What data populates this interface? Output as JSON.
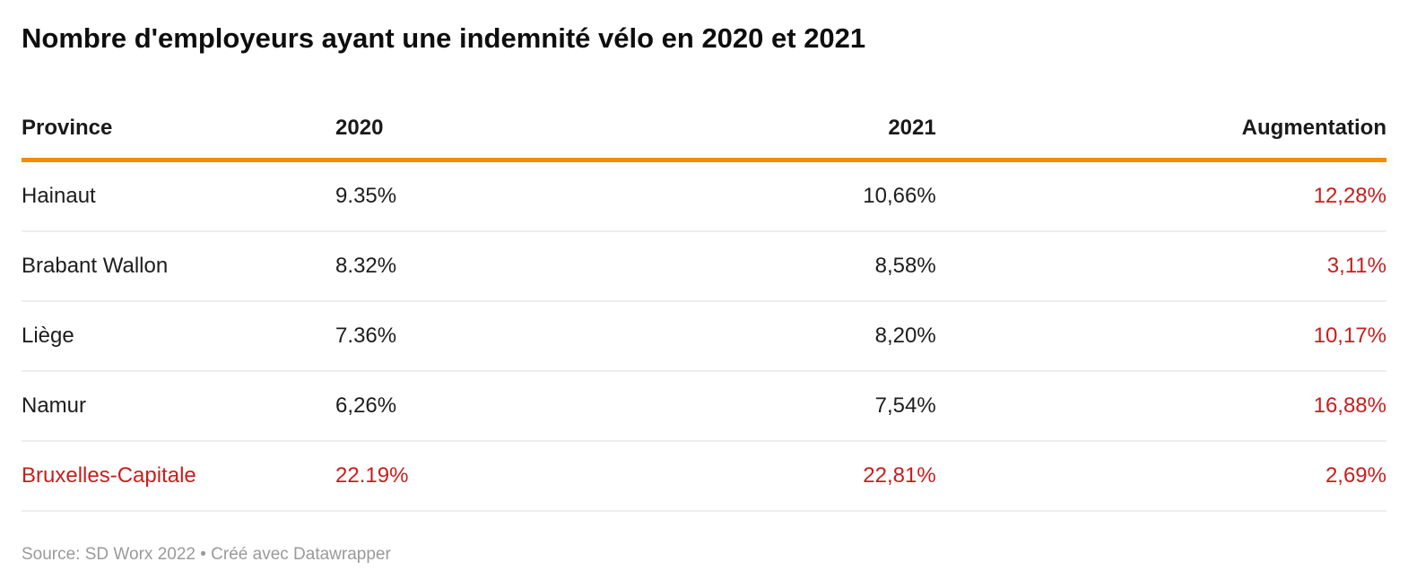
{
  "title": "Nombre d'employeurs ayant une indemnité vélo en 2020 et 2021",
  "table": {
    "columns": [
      {
        "label": "Province"
      },
      {
        "label": "2020"
      },
      {
        "label": "2021"
      },
      {
        "label": "Augmentation"
      }
    ],
    "rows": [
      {
        "province": "Hainaut",
        "y2020": "9.35%",
        "y2021": "10,66%",
        "augmentation": "12,28%",
        "highlight": false
      },
      {
        "province": "Brabant Wallon",
        "y2020": "8.32%",
        "y2021": "8,58%",
        "augmentation": "3,11%",
        "highlight": false
      },
      {
        "province": "Liège",
        "y2020": "7.36%",
        "y2021": "8,20%",
        "augmentation": "10,17%",
        "highlight": false
      },
      {
        "province": "Namur",
        "y2020": "6,26%",
        "y2021": "7,54%",
        "augmentation": "16,88%",
        "highlight": false
      },
      {
        "province": "Bruxelles-Capitale",
        "y2020": "22.19%",
        "y2021": "22,81%",
        "augmentation": "2,69%",
        "highlight": true
      }
    ]
  },
  "footer": {
    "text": "Source: SD Worx 2022 • Créé avec Datawrapper"
  },
  "colors": {
    "accent_orange": "#F28C00",
    "highlight_red": "#C81E1D",
    "divider": "#EEEEEE",
    "footer_gray": "#9A9A9A"
  },
  "chart_data": {
    "type": "table",
    "title": "Nombre d'employeurs ayant une indemnité vélo en 2020 et 2021",
    "columns": [
      "Province",
      "2020",
      "2021",
      "Augmentation"
    ],
    "rows": [
      [
        "Hainaut",
        "9.35%",
        "10,66%",
        "12,28%"
      ],
      [
        "Brabant Wallon",
        "8.32%",
        "8,58%",
        "3,11%"
      ],
      [
        "Liège",
        "7.36%",
        "8,20%",
        "10,17%"
      ],
      [
        "Namur",
        "6,26%",
        "7,54%",
        "16,88%"
      ],
      [
        "Bruxelles-Capitale",
        "22.19%",
        "22,81%",
        "2,69%"
      ]
    ],
    "numeric_values_pct": {
      "2020": [
        9.35,
        8.32,
        7.36,
        6.26,
        22.19
      ],
      "2021": [
        10.66,
        8.58,
        8.2,
        7.54,
        22.81
      ],
      "augmentation": [
        12.28,
        3.11,
        10.17,
        16.88,
        2.69
      ]
    },
    "highlighted_row": "Bruxelles-Capitale",
    "source": "SD Worx 2022",
    "tool": "Datawrapper",
    "layout_hints": {
      "header_rule_color": "#F28C00",
      "augmentation_column_color": "#C81E1D",
      "highlight_row_color": "#C81E1D",
      "column_alignments": [
        "left",
        "left",
        "right",
        "right"
      ]
    }
  }
}
